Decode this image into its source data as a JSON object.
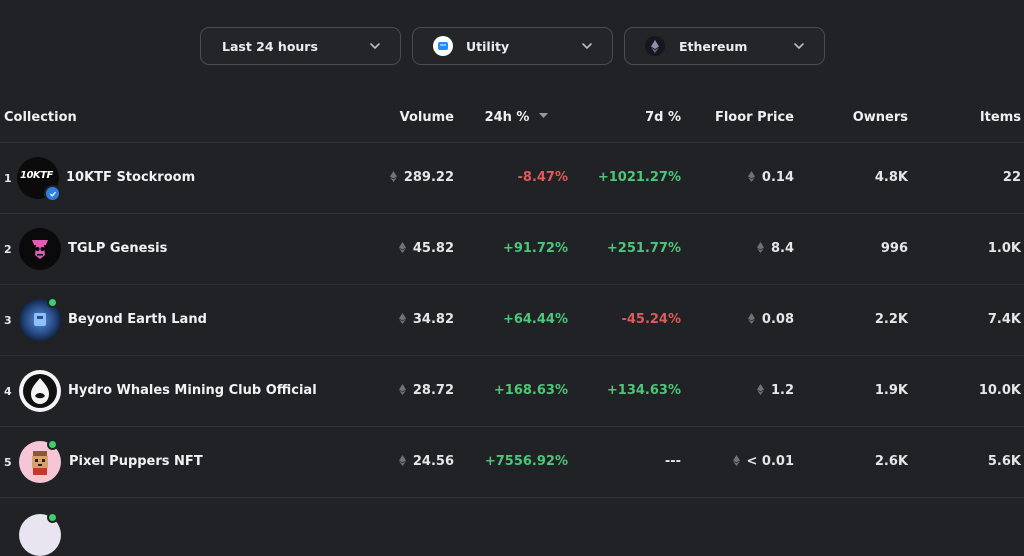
{
  "filters": {
    "time": "Last 24 hours",
    "category": "Utility",
    "chain": "Ethereum"
  },
  "columns": {
    "collection": "Collection",
    "volume": "Volume",
    "change24h": "24h %",
    "change7d": "7d %",
    "floor": "Floor Price",
    "owners": "Owners",
    "items": "Items"
  },
  "colors": {
    "background": "#202225",
    "positive": "#4cc77a",
    "negative": "#e05a5a"
  },
  "rows": [
    {
      "rank": "1",
      "name": "10KTF Stockroom",
      "avatar_text": "10KTF",
      "volume": "289.22",
      "change24h": "-8.47%",
      "change7d": "+1021.27%",
      "floor": "0.14",
      "owners": "4.8K",
      "items": "22"
    },
    {
      "rank": "2",
      "name": "TGLP Genesis",
      "volume": "45.82",
      "change24h": "+91.72%",
      "change7d": "+251.77%",
      "floor": "8.4",
      "owners": "996",
      "items": "1.0K"
    },
    {
      "rank": "3",
      "name": "Beyond Earth Land",
      "volume": "34.82",
      "change24h": "+64.44%",
      "change7d": "-45.24%",
      "floor": "0.08",
      "owners": "2.2K",
      "items": "7.4K"
    },
    {
      "rank": "4",
      "name": "Hydro Whales Mining Club Official",
      "volume": "28.72",
      "change24h": "+168.63%",
      "change7d": "+134.63%",
      "floor": "1.2",
      "owners": "1.9K",
      "items": "10.0K"
    },
    {
      "rank": "5",
      "name": "Pixel Puppers NFT",
      "volume": "24.56",
      "change24h": "+7556.92%",
      "change7d": "---",
      "floor": "< 0.01",
      "owners": "2.6K",
      "items": "5.6K"
    }
  ]
}
